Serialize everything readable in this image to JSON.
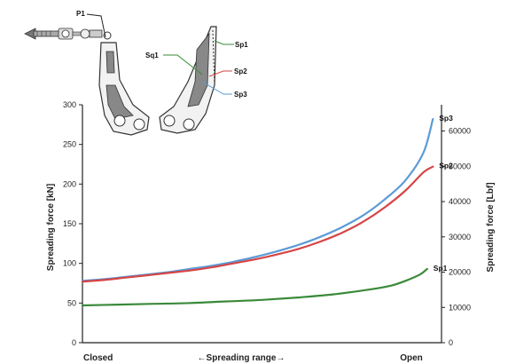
{
  "chart_data": {
    "type": "line",
    "xlabel": "←Spreading range→",
    "x_start_label": "Closed",
    "x_end_label": "Open",
    "x": [
      0,
      0.05,
      0.1,
      0.15,
      0.2,
      0.25,
      0.3,
      0.35,
      0.4,
      0.45,
      0.5,
      0.55,
      0.6,
      0.65,
      0.7,
      0.75,
      0.8,
      0.85,
      0.9,
      0.95,
      1.0
    ],
    "ylabel_left": "Spreading force [kN]",
    "ylabel_right": "Spreading force [Lbf]",
    "ylim_left": [
      0,
      300
    ],
    "yticks_left": [
      0,
      50,
      100,
      150,
      200,
      250,
      300
    ],
    "ylim_right": [
      0,
      67443
    ],
    "yticks_right": [
      0,
      10000,
      20000,
      30000,
      40000,
      50000,
      60000
    ],
    "grid": false,
    "series": [
      {
        "name": "Sp3",
        "color": "#5b9bd5",
        "x": [
          0,
          0.06,
          0.12,
          0.18,
          0.24,
          0.3,
          0.36,
          0.42,
          0.48,
          0.54,
          0.6,
          0.66,
          0.72,
          0.78,
          0.84,
          0.9,
          0.95,
          0.976
        ],
        "values": [
          78,
          80,
          83,
          86,
          89,
          93,
          97,
          102,
          108,
          115,
          123,
          133,
          145,
          160,
          180,
          205,
          240,
          282
        ]
      },
      {
        "name": "Sp2",
        "color": "#d64545",
        "x": [
          0,
          0.06,
          0.12,
          0.18,
          0.24,
          0.3,
          0.36,
          0.42,
          0.48,
          0.54,
          0.6,
          0.66,
          0.72,
          0.78,
          0.84,
          0.9,
          0.95,
          0.976
        ],
        "values": [
          77,
          79,
          82,
          85,
          88,
          91,
          95,
          100,
          105,
          111,
          118,
          127,
          138,
          152,
          170,
          192,
          215,
          222
        ]
      },
      {
        "name": "Sp1",
        "color": "#3a8a3a",
        "x": [
          0,
          0.1,
          0.2,
          0.3,
          0.4,
          0.5,
          0.6,
          0.7,
          0.8,
          0.86,
          0.9,
          0.94,
          0.96
        ],
        "values": [
          47,
          48,
          49,
          50,
          52,
          54,
          57,
          61,
          67,
          72,
          78,
          86,
          93
        ]
      }
    ]
  },
  "diagram": {
    "callouts": {
      "p1": "P1",
      "sq1": "Sq1",
      "sp1": "Sp1",
      "sp2": "Sp2",
      "sp3": "Sp3"
    }
  }
}
